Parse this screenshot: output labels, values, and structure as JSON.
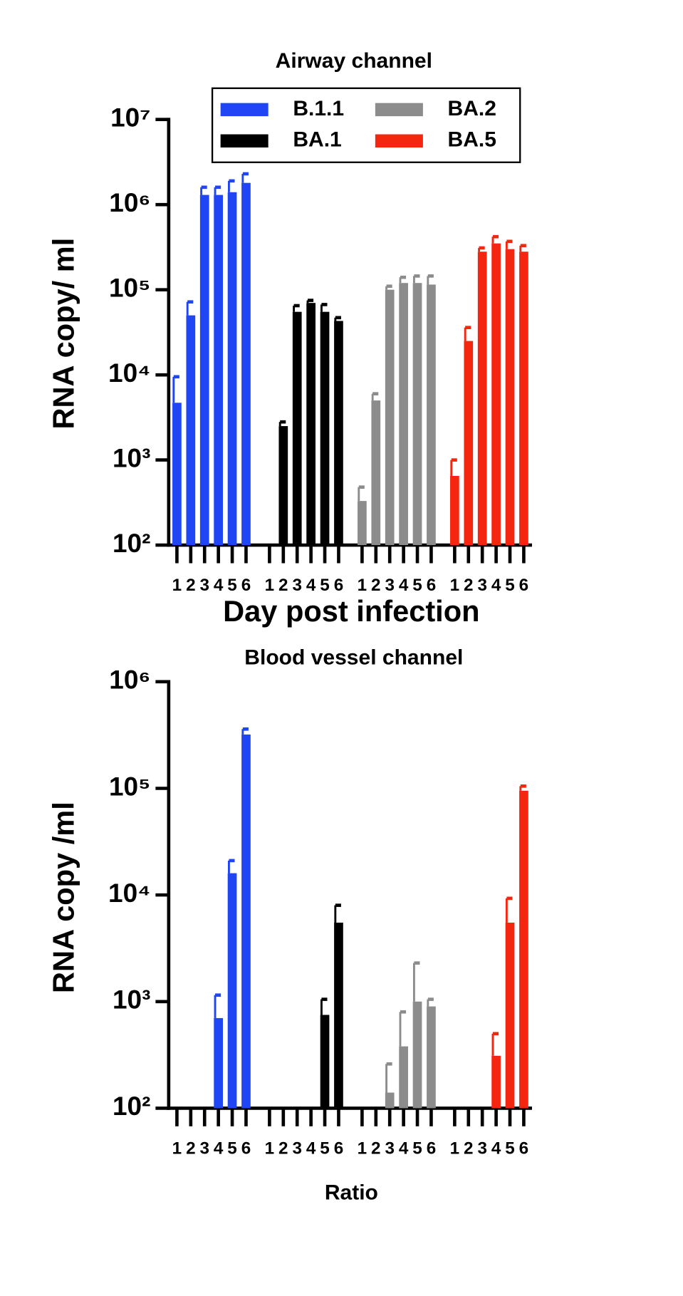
{
  "chart_data": [
    {
      "type": "bar",
      "title": "Airway channel",
      "ylabel": "RNA copy/ ml",
      "xlabel": "Day post infection",
      "categories": [
        "1",
        "2",
        "3",
        "4",
        "5",
        "6"
      ],
      "log_scale": true,
      "legend": true,
      "legend_position": "top",
      "ylim": [
        100,
        10000000
      ],
      "yticks": [
        {
          "value": 100,
          "label": "10²"
        },
        {
          "value": 1000,
          "label": "10³"
        },
        {
          "value": 10000,
          "label": "10⁴"
        },
        {
          "value": 100000,
          "label": "10⁵"
        },
        {
          "value": 1000000,
          "label": "10⁶"
        },
        {
          "value": 10000000,
          "label": "10⁷"
        }
      ],
      "series": [
        {
          "name": "B.1.1",
          "color": "#1f45f5",
          "values": [
            4700,
            50000,
            1300000,
            1300000,
            1400000,
            1800000
          ],
          "errors": [
            4800,
            22000,
            300000,
            300000,
            500000,
            500000
          ]
        },
        {
          "name": "BA.1",
          "color": "#000000",
          "values": [
            null,
            2500,
            55000,
            70000,
            55000,
            43000
          ],
          "errors": [
            null,
            300,
            10000,
            5000,
            12000,
            4000
          ]
        },
        {
          "name": "BA.2",
          "color": "#8c8c8c",
          "values": [
            330,
            5000,
            100000,
            120000,
            120000,
            115000
          ],
          "errors": [
            150,
            1000,
            10000,
            20000,
            25000,
            30000
          ]
        },
        {
          "name": "BA.5",
          "color": "#f5260f",
          "values": [
            650,
            25000,
            280000,
            350000,
            300000,
            280000
          ],
          "errors": [
            350,
            11000,
            30000,
            70000,
            70000,
            50000
          ]
        }
      ]
    },
    {
      "type": "bar",
      "title": "Blood vessel channel",
      "ylabel": "RNA copy /ml",
      "xlabel": "Ratio",
      "categories": [
        "1",
        "2",
        "3",
        "4",
        "5",
        "6"
      ],
      "log_scale": true,
      "legend": false,
      "ylim": [
        100,
        1000000
      ],
      "yticks": [
        {
          "value": 100,
          "label": "10²"
        },
        {
          "value": 1000,
          "label": "10³"
        },
        {
          "value": 10000,
          "label": "10⁴"
        },
        {
          "value": 100000,
          "label": "10⁵"
        },
        {
          "value": 1000000,
          "label": "10⁶"
        }
      ],
      "series": [
        {
          "name": "B.1.1",
          "color": "#1f45f5",
          "values": [
            null,
            null,
            null,
            700,
            16000,
            320000
          ],
          "errors": [
            null,
            null,
            null,
            450,
            5000,
            40000
          ]
        },
        {
          "name": "BA.1",
          "color": "#000000",
          "values": [
            null,
            null,
            null,
            null,
            750,
            5500
          ],
          "errors": [
            null,
            null,
            null,
            null,
            300,
            2500
          ]
        },
        {
          "name": "BA.2",
          "color": "#8c8c8c",
          "values": [
            null,
            null,
            140,
            380,
            1000,
            900
          ],
          "errors": [
            null,
            null,
            120,
            420,
            1300,
            150
          ]
        },
        {
          "name": "BA.5",
          "color": "#f5260f",
          "values": [
            null,
            null,
            null,
            310,
            5500,
            95000
          ],
          "errors": [
            null,
            null,
            null,
            190,
            3800,
            10000
          ]
        }
      ]
    }
  ]
}
